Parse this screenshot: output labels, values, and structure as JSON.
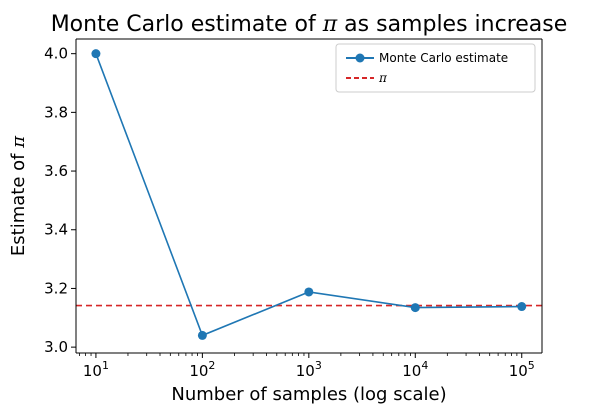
{
  "chart_data": {
    "type": "line",
    "title": {
      "prefix": "Monte Carlo estimate of ",
      "symbol": "π",
      "suffix": " as samples increase"
    },
    "xlabel": "Number of samples (log scale)",
    "ylabel": {
      "prefix": "Estimate of ",
      "symbol": "π"
    },
    "x_scale": "log",
    "xlim": [
      6.5,
      155000
    ],
    "ylim": [
      2.98,
      4.05
    ],
    "x_ticks": [
      {
        "value": 10,
        "base": "10",
        "exp": "1"
      },
      {
        "value": 100,
        "base": "10",
        "exp": "2"
      },
      {
        "value": 1000,
        "base": "10",
        "exp": "3"
      },
      {
        "value": 10000,
        "base": "10",
        "exp": "4"
      },
      {
        "value": 100000,
        "base": "10",
        "exp": "5"
      }
    ],
    "y_ticks": [
      "3.0",
      "3.2",
      "3.4",
      "3.6",
      "3.8",
      "4.0"
    ],
    "series": [
      {
        "name": "Monte Carlo estimate",
        "color": "#1f77b4",
        "marker": "circle",
        "x": [
          10,
          100,
          1000,
          10000,
          100000
        ],
        "y": [
          4.0,
          3.04,
          3.188,
          3.1348,
          3.13836
        ]
      }
    ],
    "reference_line": {
      "name": "π",
      "value": 3.14159,
      "color": "#d62728",
      "style": "dashed"
    },
    "legend_placement": "top-right",
    "grid": false
  }
}
